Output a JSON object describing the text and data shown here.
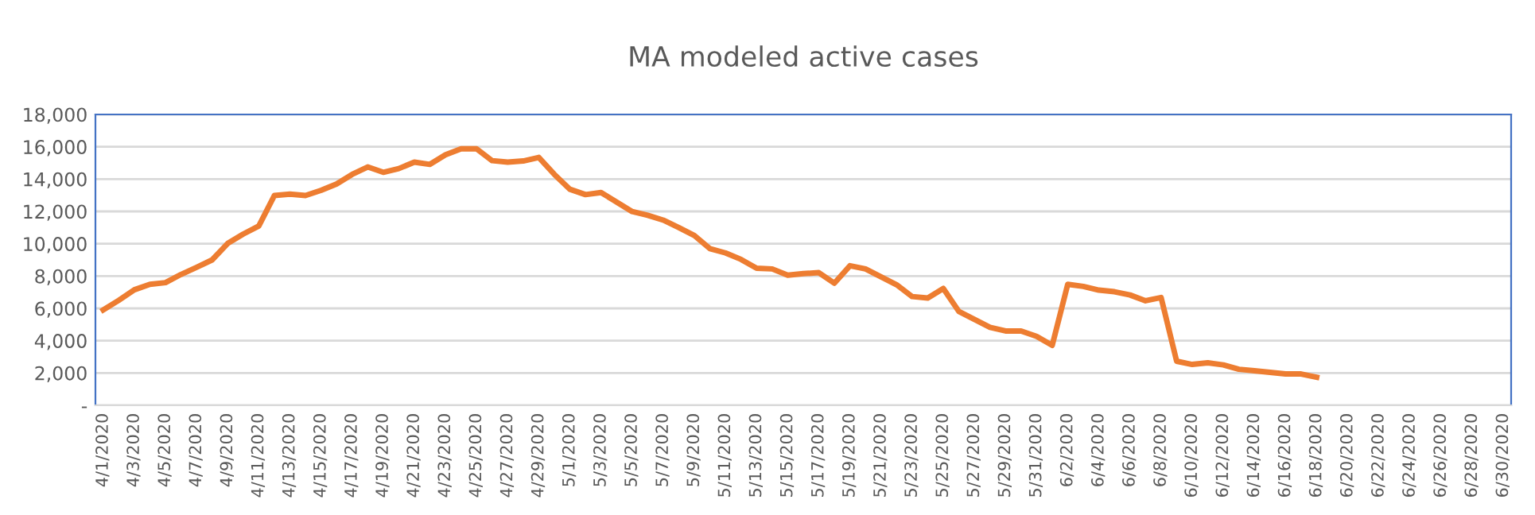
{
  "chart_data": {
    "type": "line",
    "title": "MA modeled active cases",
    "categories": [
      "4/1/2020",
      null,
      "4/3/2020",
      null,
      "4/5/2020",
      null,
      "4/7/2020",
      null,
      "4/9/2020",
      null,
      "4/11/2020",
      null,
      "4/13/2020",
      null,
      "4/15/2020",
      null,
      "4/17/2020",
      null,
      "4/19/2020",
      null,
      "4/21/2020",
      null,
      "4/23/2020",
      null,
      "4/25/2020",
      null,
      "4/27/2020",
      null,
      "4/29/2020",
      null,
      "5/1/2020",
      null,
      "5/3/2020",
      null,
      "5/5/2020",
      null,
      "5/7/2020",
      null,
      "5/9/2020",
      null,
      "5/11/2020",
      null,
      "5/13/2020",
      null,
      "5/15/2020",
      null,
      "5/17/2020",
      null,
      "5/19/2020",
      null,
      "5/21/2020",
      null,
      "5/23/2020",
      null,
      "5/25/2020",
      null,
      "5/27/2020",
      null,
      "5/29/2020",
      null,
      "5/31/2020",
      null,
      "6/2/2020",
      null,
      "6/4/2020",
      null,
      "6/6/2020",
      null,
      "6/8/2020",
      null,
      "6/10/2020",
      null,
      "6/12/2020",
      null,
      "6/14/2020",
      null,
      "6/16/2020",
      null,
      "6/18/2020",
      null,
      "6/20/2020",
      null,
      "6/22/2020",
      null,
      "6/24/2020",
      null,
      "6/26/2020",
      null,
      "6/28/2020",
      null,
      "6/30/2020"
    ],
    "series": [
      {
        "color": "#ed7d31",
        "values": [
          5900,
          6500,
          7150,
          7490,
          7590,
          8100,
          8540,
          9000,
          10020,
          10600,
          11100,
          12980,
          13070,
          12980,
          13300,
          13700,
          14290,
          14750,
          14420,
          14650,
          15050,
          14910,
          15500,
          15870,
          15870,
          15140,
          15050,
          15120,
          15340,
          14290,
          13370,
          13040,
          13170,
          12580,
          11990,
          11760,
          11460,
          11000,
          10510,
          9690,
          9430,
          9030,
          8480,
          8440,
          8050,
          8150,
          8210,
          7560,
          8640,
          8440,
          7950,
          7460,
          6730,
          6640,
          7230,
          5810,
          5320,
          4830,
          4600,
          4600,
          4270,
          3710,
          7490,
          7360,
          7130,
          7030,
          6830,
          6470,
          6670,
          2730,
          2530,
          2630,
          2500,
          2230,
          2140,
          2040,
          1940,
          1940,
          1740,
          null,
          null,
          null,
          null,
          null,
          null,
          null,
          null,
          null,
          null,
          null,
          null
        ]
      }
    ],
    "ylim": [
      0,
      18000
    ],
    "yticks": [
      {
        "value": 0,
        "label": "-"
      },
      {
        "value": 2000,
        "label": "2,000"
      },
      {
        "value": 4000,
        "label": "4,000"
      },
      {
        "value": 6000,
        "label": "6,000"
      },
      {
        "value": 8000,
        "label": "8,000"
      },
      {
        "value": 10000,
        "label": "10,000"
      },
      {
        "value": 12000,
        "label": "12,000"
      },
      {
        "value": 14000,
        "label": "14,000"
      },
      {
        "value": 16000,
        "label": "16,000"
      },
      {
        "value": 18000,
        "label": "18,000"
      }
    ],
    "grid": "y",
    "legend": false,
    "marker": "none",
    "line_style": "solid"
  }
}
